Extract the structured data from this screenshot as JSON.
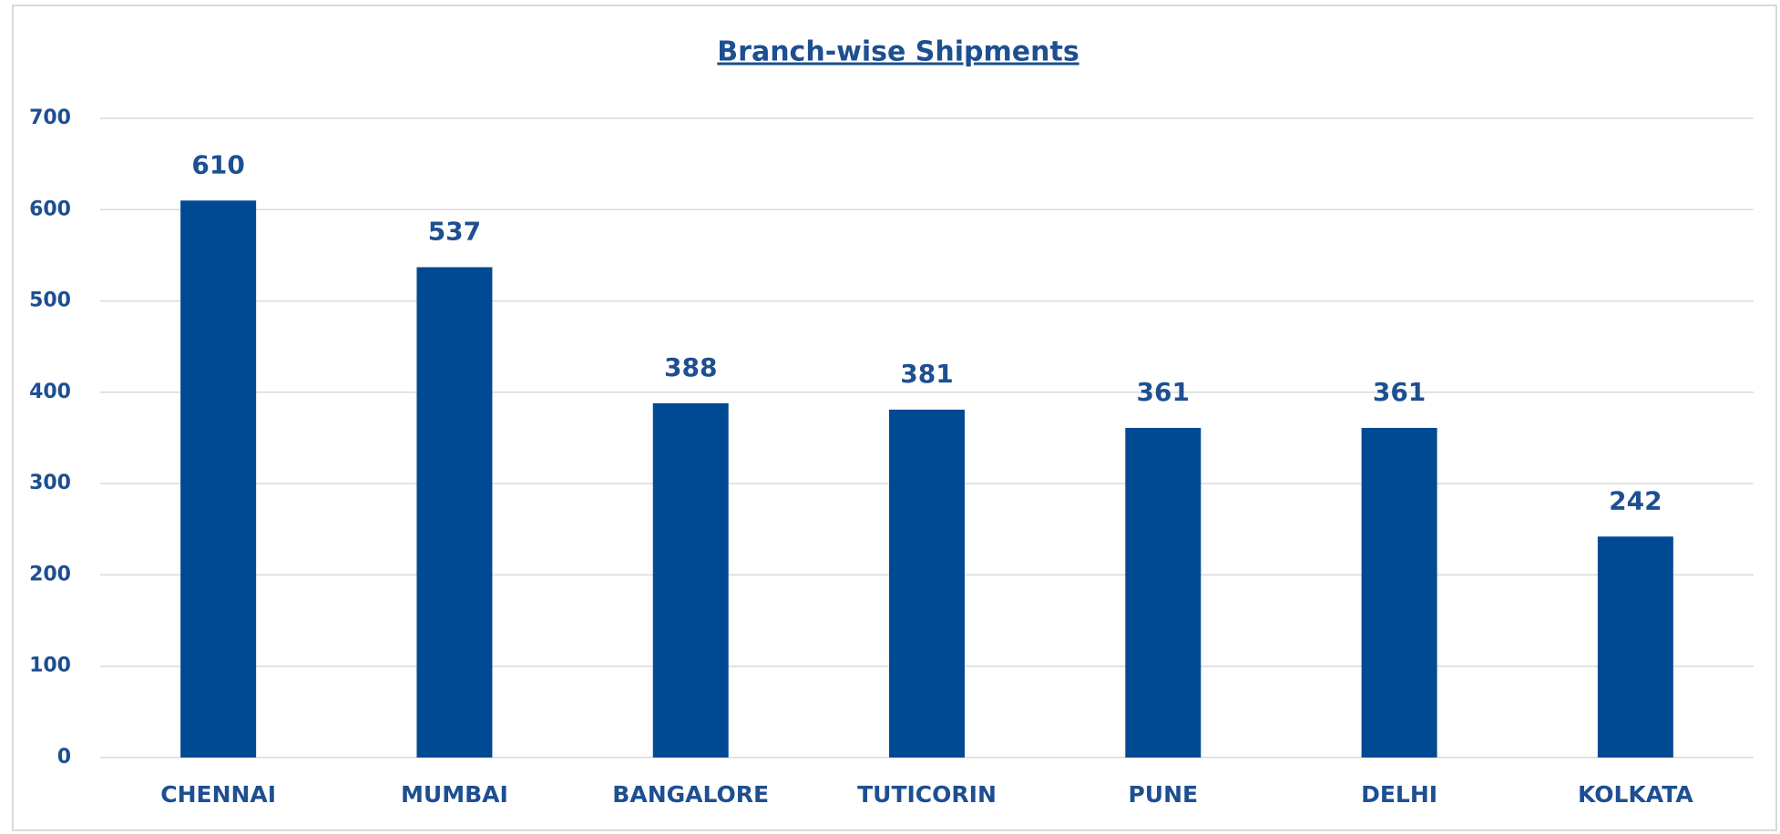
{
  "chart_data": {
    "type": "bar",
    "title": "Branch-wise Shipments",
    "categories": [
      "CHENNAI",
      "MUMBAI",
      "BANGALORE",
      "TUTICORIN",
      "PUNE",
      "DELHI",
      "KOLKATA"
    ],
    "values": [
      610,
      537,
      388,
      381,
      361,
      361,
      242
    ],
    "color": "#004a94",
    "ylim": [
      0,
      700
    ],
    "yticks": [
      0,
      100,
      200,
      300,
      400,
      500,
      600,
      700
    ],
    "grid": true
  }
}
